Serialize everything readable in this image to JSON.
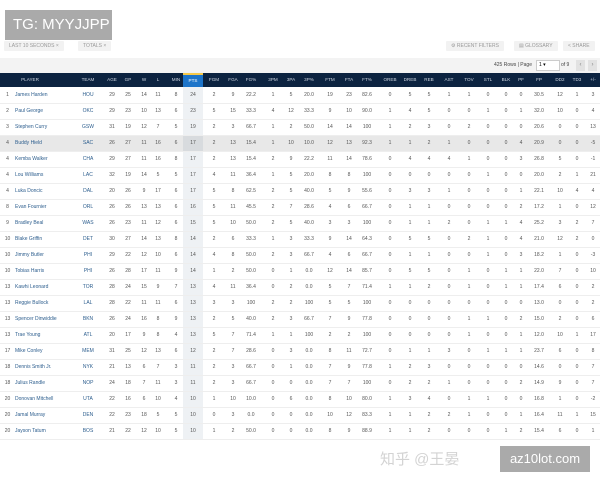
{
  "badge": "TG: MYYJJPP",
  "filters": [
    "LAST 10 SECONDS ×",
    "TOTALS ×"
  ],
  "tools": [
    "⚙ RECENT FILTERS",
    "▤ GLOSSARY",
    "< SHARE"
  ],
  "pagination": {
    "rows": "425 Rows | Page",
    "page": "1",
    "of": "of 9",
    "prev": "‹",
    "next": "›"
  },
  "columns": [
    "PLAYER",
    "TEAM",
    "AGE",
    "GP",
    "W",
    "L",
    "MIN",
    "PTS",
    "FGM",
    "FGA",
    "FG%",
    "3PM",
    "3PA",
    "3P%",
    "FTM",
    "FTA",
    "FT%",
    "OREB",
    "DREB",
    "REB",
    "AST",
    "TOV",
    "STL",
    "BLK",
    "PF",
    "FP",
    "DD2",
    "TD3",
    "+/-"
  ],
  "sorted_column": "PTS",
  "highlighted_row": 3,
  "rows": [
    [
      "1",
      "James Harden",
      "HOU",
      "29",
      "25",
      "14",
      "11",
      "8",
      "24",
      "2",
      "9",
      "22.2",
      "1",
      "5",
      "20.0",
      "19",
      "23",
      "82.6",
      "0",
      "5",
      "5",
      "1",
      "1",
      "0",
      "0",
      "0",
      "30.5",
      "12",
      "1",
      "3"
    ],
    [
      "2",
      "Paul George",
      "OKC",
      "29",
      "23",
      "10",
      "13",
      "6",
      "23",
      "5",
      "15",
      "33.3",
      "4",
      "12",
      "33.3",
      "9",
      "10",
      "90.0",
      "1",
      "4",
      "5",
      "0",
      "0",
      "1",
      "0",
      "1",
      "32.0",
      "10",
      "0",
      "4"
    ],
    [
      "3",
      "Stephen Curry",
      "GSW",
      "31",
      "19",
      "12",
      "7",
      "5",
      "19",
      "2",
      "3",
      "66.7",
      "1",
      "2",
      "50.0",
      "14",
      "14",
      "100",
      "1",
      "2",
      "3",
      "0",
      "2",
      "0",
      "0",
      "0",
      "20.6",
      "0",
      "0",
      "13"
    ],
    [
      "4",
      "Buddy Hield",
      "SAC",
      "26",
      "27",
      "11",
      "16",
      "6",
      "17",
      "2",
      "13",
      "15.4",
      "1",
      "10",
      "10.0",
      "12",
      "13",
      "92.3",
      "1",
      "1",
      "2",
      "1",
      "0",
      "0",
      "0",
      "4",
      "20.9",
      "0",
      "0",
      "-5"
    ],
    [
      "4",
      "Kemba Walker",
      "CHA",
      "29",
      "27",
      "11",
      "16",
      "8",
      "17",
      "2",
      "13",
      "15.4",
      "2",
      "9",
      "22.2",
      "11",
      "14",
      "78.6",
      "0",
      "4",
      "4",
      "4",
      "1",
      "0",
      "0",
      "3",
      "26.8",
      "5",
      "0",
      "-1"
    ],
    [
      "4",
      "Lou Williams",
      "LAC",
      "32",
      "19",
      "14",
      "5",
      "5",
      "17",
      "4",
      "11",
      "36.4",
      "1",
      "5",
      "20.0",
      "8",
      "8",
      "100",
      "0",
      "0",
      "0",
      "0",
      "0",
      "1",
      "0",
      "0",
      "20.0",
      "2",
      "1",
      "21"
    ],
    [
      "4",
      "Luka Doncic",
      "DAL",
      "20",
      "26",
      "9",
      "17",
      "6",
      "17",
      "5",
      "8",
      "62.5",
      "2",
      "5",
      "40.0",
      "5",
      "9",
      "55.6",
      "0",
      "3",
      "3",
      "1",
      "0",
      "0",
      "0",
      "1",
      "22.1",
      "10",
      "4",
      "4"
    ],
    [
      "8",
      "Evan Fournier",
      "ORL",
      "26",
      "26",
      "13",
      "13",
      "6",
      "16",
      "5",
      "11",
      "45.5",
      "2",
      "7",
      "28.6",
      "4",
      "6",
      "66.7",
      "0",
      "1",
      "1",
      "0",
      "0",
      "0",
      "0",
      "2",
      "17.2",
      "1",
      "0",
      "12"
    ],
    [
      "9",
      "Bradley Beal",
      "WAS",
      "26",
      "23",
      "11",
      "12",
      "6",
      "15",
      "5",
      "10",
      "50.0",
      "2",
      "5",
      "40.0",
      "3",
      "3",
      "100",
      "0",
      "1",
      "1",
      "2",
      "0",
      "1",
      "1",
      "4",
      "25.2",
      "3",
      "2",
      "7"
    ],
    [
      "10",
      "Blake Griffin",
      "DET",
      "30",
      "27",
      "14",
      "13",
      "8",
      "14",
      "2",
      "6",
      "33.3",
      "1",
      "3",
      "33.3",
      "9",
      "14",
      "64.3",
      "0",
      "5",
      "5",
      "0",
      "2",
      "1",
      "0",
      "4",
      "21.0",
      "12",
      "2",
      "0"
    ],
    [
      "10",
      "Jimmy Butler",
      "PHI",
      "29",
      "22",
      "12",
      "10",
      "6",
      "14",
      "4",
      "8",
      "50.0",
      "2",
      "3",
      "66.7",
      "4",
      "6",
      "66.7",
      "0",
      "1",
      "1",
      "0",
      "0",
      "1",
      "0",
      "3",
      "18.2",
      "1",
      "0",
      "-3"
    ],
    [
      "10",
      "Tobias Harris",
      "PHI",
      "26",
      "28",
      "17",
      "11",
      "9",
      "14",
      "1",
      "2",
      "50.0",
      "0",
      "1",
      "0.0",
      "12",
      "14",
      "85.7",
      "0",
      "5",
      "5",
      "0",
      "1",
      "0",
      "1",
      "1",
      "22.0",
      "7",
      "0",
      "10"
    ],
    [
      "13",
      "Kawhi Leonard",
      "TOR",
      "28",
      "24",
      "15",
      "9",
      "7",
      "13",
      "4",
      "11",
      "36.4",
      "0",
      "2",
      "0.0",
      "5",
      "7",
      "71.4",
      "1",
      "1",
      "2",
      "0",
      "1",
      "0",
      "1",
      "1",
      "17.4",
      "6",
      "0",
      "2"
    ],
    [
      "13",
      "Reggie Bullock",
      "LAL",
      "28",
      "22",
      "11",
      "11",
      "6",
      "13",
      "3",
      "3",
      "100",
      "2",
      "2",
      "100",
      "5",
      "5",
      "100",
      "0",
      "0",
      "0",
      "0",
      "0",
      "0",
      "0",
      "0",
      "13.0",
      "0",
      "0",
      "2"
    ],
    [
      "13",
      "Spencer Dinwiddie",
      "BKN",
      "26",
      "24",
      "16",
      "8",
      "9",
      "13",
      "2",
      "5",
      "40.0",
      "2",
      "3",
      "66.7",
      "7",
      "9",
      "77.8",
      "0",
      "0",
      "0",
      "0",
      "1",
      "1",
      "0",
      "2",
      "15.0",
      "2",
      "0",
      "6"
    ],
    [
      "13",
      "Trae Young",
      "ATL",
      "20",
      "17",
      "9",
      "8",
      "4",
      "13",
      "5",
      "7",
      "71.4",
      "1",
      "1",
      "100",
      "2",
      "2",
      "100",
      "0",
      "0",
      "0",
      "0",
      "1",
      "0",
      "0",
      "1",
      "12.0",
      "10",
      "1",
      "17"
    ],
    [
      "17",
      "Mike Conley",
      "MEM",
      "31",
      "25",
      "12",
      "13",
      "6",
      "12",
      "2",
      "7",
      "28.6",
      "0",
      "3",
      "0.0",
      "8",
      "11",
      "72.7",
      "0",
      "1",
      "1",
      "3",
      "0",
      "1",
      "1",
      "1",
      "23.7",
      "6",
      "0",
      "8"
    ],
    [
      "18",
      "Dennis Smith Jr.",
      "NYK",
      "21",
      "13",
      "6",
      "7",
      "3",
      "11",
      "2",
      "3",
      "66.7",
      "0",
      "1",
      "0.0",
      "7",
      "9",
      "77.8",
      "1",
      "2",
      "3",
      "0",
      "0",
      "0",
      "0",
      "0",
      "14.6",
      "0",
      "0",
      "7"
    ],
    [
      "18",
      "Julius Randle",
      "NOP",
      "24",
      "18",
      "7",
      "11",
      "3",
      "11",
      "2",
      "3",
      "66.7",
      "0",
      "0",
      "0.0",
      "7",
      "7",
      "100",
      "0",
      "2",
      "2",
      "1",
      "0",
      "0",
      "0",
      "2",
      "14.9",
      "9",
      "0",
      "7"
    ],
    [
      "20",
      "Donovan Mitchell",
      "UTA",
      "22",
      "16",
      "6",
      "10",
      "4",
      "10",
      "1",
      "10",
      "10.0",
      "0",
      "6",
      "0.0",
      "8",
      "10",
      "80.0",
      "1",
      "3",
      "4",
      "0",
      "1",
      "1",
      "0",
      "0",
      "16.8",
      "1",
      "0",
      "-2"
    ],
    [
      "20",
      "Jamal Murray",
      "DEN",
      "22",
      "23",
      "18",
      "5",
      "5",
      "10",
      "0",
      "3",
      "0.0",
      "0",
      "0",
      "0.0",
      "10",
      "12",
      "83.3",
      "1",
      "1",
      "2",
      "2",
      "1",
      "0",
      "0",
      "1",
      "16.4",
      "11",
      "1",
      "15"
    ],
    [
      "20",
      "Jayson Tatum",
      "BOS",
      "21",
      "22",
      "12",
      "10",
      "5",
      "10",
      "1",
      "2",
      "50.0",
      "0",
      "0",
      "0.0",
      "8",
      "9",
      "88.9",
      "1",
      "1",
      "2",
      "0",
      "0",
      "0",
      "1",
      "2",
      "15.4",
      "6",
      "0",
      "1"
    ]
  ],
  "watermark": "知乎 @王晏",
  "site": "az10lot.com"
}
